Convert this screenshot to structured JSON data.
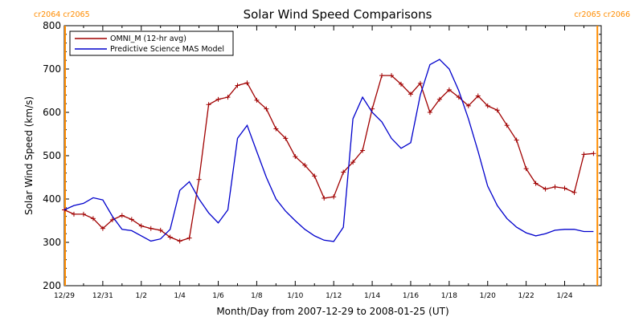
{
  "colors": {
    "omni": "#a00000",
    "model": "#0000cc",
    "rotation_marker": "#ff8c00"
  },
  "chart_data": {
    "type": "line",
    "title": "Solar Wind Speed Comparisons",
    "xlabel": "Month/Day from 2007-12-29 to 2008-01-25 (UT)",
    "ylabel": "Solar Wind Speed (km/s)",
    "ylim": [
      200,
      800
    ],
    "yticks": [
      200,
      300,
      400,
      500,
      600,
      700,
      800
    ],
    "xlim_days": [
      0,
      27.9
    ],
    "xticks": [
      {
        "day": 0,
        "label": "12/29"
      },
      {
        "day": 2,
        "label": "12/31"
      },
      {
        "day": 4,
        "label": "1/2"
      },
      {
        "day": 6,
        "label": "1/4"
      },
      {
        "day": 8,
        "label": "1/6"
      },
      {
        "day": 10,
        "label": "1/8"
      },
      {
        "day": 12,
        "label": "1/10"
      },
      {
        "day": 14,
        "label": "1/12"
      },
      {
        "day": 16,
        "label": "1/14"
      },
      {
        "day": 18,
        "label": "1/16"
      },
      {
        "day": 20,
        "label": "1/18"
      },
      {
        "day": 22,
        "label": "1/20"
      },
      {
        "day": 24,
        "label": "1/22"
      },
      {
        "day": 26,
        "label": "1/24"
      }
    ],
    "grid": false,
    "legend": "top-left",
    "rotation_boundaries": [
      {
        "day": 0,
        "label": "cr2064 cr2065",
        "side": "left"
      },
      {
        "day": 27.7,
        "label": "cr2065 cr2066",
        "side": "right"
      }
    ],
    "series": [
      {
        "name": "OMNI_M (12-hr avg)",
        "color_key": "omni",
        "markers": true,
        "x": [
          0,
          0.5,
          1,
          1.5,
          2,
          2.5,
          3,
          3.5,
          4,
          4.5,
          5,
          5.5,
          6,
          6.5,
          7,
          7.5,
          8,
          8.5,
          9,
          9.5,
          10,
          10.5,
          11,
          11.5,
          12,
          12.5,
          13,
          13.5,
          14,
          14.5,
          15,
          15.5,
          16,
          16.5,
          17,
          17.5,
          18,
          18.5,
          19,
          19.5,
          20,
          20.5,
          21,
          21.5,
          22,
          22.5,
          23,
          23.5,
          24,
          24.5,
          25,
          25.5,
          26,
          26.5,
          27,
          27.5
        ],
        "y": [
          375,
          365,
          365,
          355,
          332,
          352,
          362,
          353,
          338,
          332,
          328,
          312,
          303,
          310,
          445,
          618,
          630,
          635,
          662,
          668,
          628,
          608,
          562,
          540,
          498,
          478,
          453,
          402,
          405,
          462,
          485,
          512,
          608,
          685,
          685,
          665,
          642,
          667,
          600,
          630,
          652,
          635,
          615,
          638,
          615,
          605,
          570,
          536,
          470,
          436,
          423,
          428,
          425,
          415,
          503,
          505
        ]
      },
      {
        "name": "Predictive Science MAS Model",
        "color_key": "model",
        "markers": false,
        "x": [
          0,
          0.5,
          1,
          1.5,
          2,
          2.5,
          3,
          3.5,
          4,
          4.5,
          5,
          5.5,
          6,
          6.5,
          7,
          7.5,
          8,
          8.5,
          9,
          9.5,
          10,
          10.5,
          11,
          11.5,
          12,
          12.5,
          13,
          13.5,
          14,
          14.5,
          15,
          15.5,
          16,
          16.5,
          17,
          17.5,
          18,
          18.5,
          19,
          19.5,
          20,
          20.5,
          21,
          21.5,
          22,
          22.5,
          23,
          23.5,
          24,
          24.5,
          25,
          25.5,
          26,
          26.5,
          27,
          27.5
        ],
        "y": [
          375,
          385,
          390,
          403,
          398,
          360,
          330,
          327,
          315,
          303,
          308,
          330,
          420,
          440,
          400,
          368,
          345,
          375,
          540,
          570,
          510,
          450,
          400,
          372,
          350,
          330,
          315,
          305,
          302,
          335,
          585,
          635,
          600,
          578,
          540,
          517,
          530,
          640,
          710,
          722,
          700,
          650,
          585,
          510,
          430,
          385,
          355,
          335,
          322,
          315,
          320,
          328,
          330,
          330,
          325,
          325
        ]
      }
    ]
  }
}
